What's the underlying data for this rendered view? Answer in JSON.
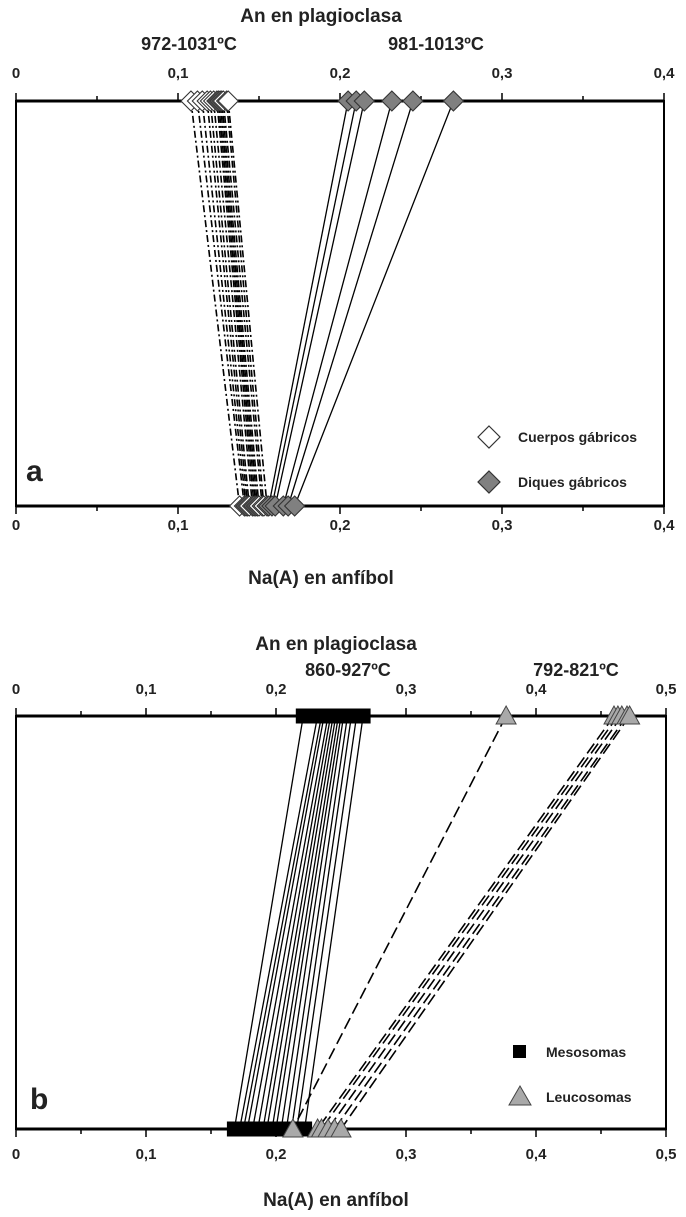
{
  "chart_data": [
    {
      "type": "scatter",
      "panel_label": "a",
      "top_axis_title": "An en plagioclasa",
      "bottom_axis_title": "Na(A) en anfíbol",
      "temperature_labels": [
        "972-1031ºC",
        "981-1013ºC"
      ],
      "xlim": [
        0,
        0.4
      ],
      "ticks": [
        0,
        0.1,
        0.2,
        0.3,
        0.4
      ],
      "tick_labels": [
        "0",
        "0,1",
        "0,2",
        "0,3",
        "0,4"
      ],
      "legend_position": "bottom-right",
      "series": [
        {
          "name": "Cuerpos gábricos",
          "marker": "diamond-open",
          "line_style": "dash-dot",
          "color": "#ffffff",
          "pairs": [
            {
              "an": 0.108,
              "na": 0.138
            },
            {
              "an": 0.112,
              "na": 0.141
            },
            {
              "an": 0.115,
              "na": 0.142
            },
            {
              "an": 0.118,
              "na": 0.143
            },
            {
              "an": 0.12,
              "na": 0.144
            },
            {
              "an": 0.122,
              "na": 0.146
            },
            {
              "an": 0.124,
              "na": 0.147
            },
            {
              "an": 0.125,
              "na": 0.148
            },
            {
              "an": 0.126,
              "na": 0.149
            },
            {
              "an": 0.127,
              "na": 0.15
            },
            {
              "an": 0.128,
              "na": 0.152
            },
            {
              "an": 0.13,
              "na": 0.153
            },
            {
              "an": 0.131,
              "na": 0.155
            }
          ]
        },
        {
          "name": "Diques gábricos",
          "marker": "diamond-filled",
          "line_style": "solid",
          "color": "#808080",
          "pairs": [
            {
              "an": 0.205,
              "na": 0.156
            },
            {
              "an": 0.21,
              "na": 0.158
            },
            {
              "an": 0.215,
              "na": 0.16
            },
            {
              "an": 0.232,
              "na": 0.165
            },
            {
              "an": 0.245,
              "na": 0.168
            },
            {
              "an": 0.27,
              "na": 0.172
            }
          ]
        }
      ]
    },
    {
      "type": "scatter",
      "panel_label": "b",
      "top_axis_title": "An en plagioclasa",
      "bottom_axis_title": "Na(A) en anfíbol",
      "temperature_labels": [
        "860-927ºC",
        "792-821ºC"
      ],
      "xlim": [
        0,
        0.5
      ],
      "ticks": [
        0,
        0.1,
        0.2,
        0.3,
        0.4,
        0.5
      ],
      "tick_labels": [
        "0",
        "0,1",
        "0,2",
        "0,3",
        "0,4",
        "0,5"
      ],
      "legend_position": "bottom-right",
      "series": [
        {
          "name": "Mesosomas",
          "marker": "square-filled",
          "line_style": "solid",
          "color": "#000000",
          "pairs": [
            {
              "an": 0.221,
              "na": 0.168
            },
            {
              "an": 0.232,
              "na": 0.172
            },
            {
              "an": 0.235,
              "na": 0.175
            },
            {
              "an": 0.237,
              "na": 0.178
            },
            {
              "an": 0.24,
              "na": 0.182
            },
            {
              "an": 0.242,
              "na": 0.186
            },
            {
              "an": 0.244,
              "na": 0.19
            },
            {
              "an": 0.246,
              "na": 0.193
            },
            {
              "an": 0.248,
              "na": 0.197
            },
            {
              "an": 0.25,
              "na": 0.2
            },
            {
              "an": 0.252,
              "na": 0.204
            },
            {
              "an": 0.255,
              "na": 0.208
            },
            {
              "an": 0.258,
              "na": 0.212
            },
            {
              "an": 0.262,
              "na": 0.216
            },
            {
              "an": 0.267,
              "na": 0.222
            }
          ]
        },
        {
          "name": "Leucosomas",
          "marker": "triangle-filled",
          "line_style": "dashed",
          "color": "#a9a9a9",
          "pairs": [
            {
              "an": 0.377,
              "na": 0.213
            },
            {
              "an": 0.46,
              "na": 0.232
            },
            {
              "an": 0.463,
              "na": 0.235
            },
            {
              "an": 0.466,
              "na": 0.24
            },
            {
              "an": 0.47,
              "na": 0.245
            },
            {
              "an": 0.472,
              "na": 0.25
            }
          ]
        }
      ]
    }
  ]
}
